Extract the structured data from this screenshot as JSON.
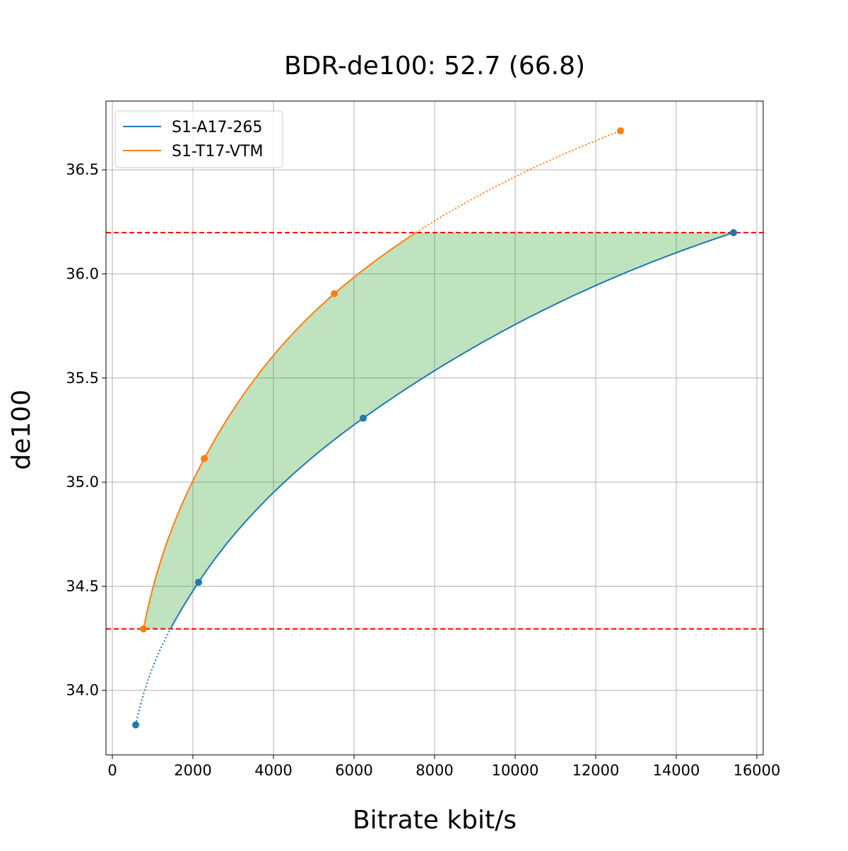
{
  "chart_data": {
    "type": "line",
    "title": "BDR-de100: 52.7 (66.8)",
    "xlabel": "Bitrate kbit/s",
    "ylabel": "de100",
    "xlim": [
      -158,
      16158
    ],
    "ylim": [
      33.69,
      36.83
    ],
    "xticks": [
      0,
      2000,
      4000,
      6000,
      8000,
      10000,
      12000,
      14000,
      16000
    ],
    "yticks": [
      34.0,
      34.5,
      35.0,
      35.5,
      36.0,
      36.5
    ],
    "xtick_labels": [
      "0",
      "2000",
      "4000",
      "6000",
      "8000",
      "10000",
      "12000",
      "14000",
      "16000"
    ],
    "ytick_labels": [
      "34.0",
      "34.5",
      "35.0",
      "35.5",
      "36.0",
      "36.5"
    ],
    "grid": true,
    "legend": {
      "placement": "top-left"
    },
    "series": [
      {
        "name": "S1-A17-265",
        "color": "#1f77b4",
        "x": [
          579,
          2140,
          6228,
          15421
        ],
        "y": [
          33.834,
          34.519,
          35.307,
          36.198
        ]
      },
      {
        "name": "S1-T17-VTM",
        "color": "#ff7f0e",
        "x": [
          772,
          2281,
          5509,
          12614
        ],
        "y": [
          34.295,
          35.113,
          35.905,
          36.687
        ]
      }
    ],
    "reference_lines": {
      "y": [
        34.295,
        36.198
      ],
      "color": "#ff0000",
      "style": "dashed"
    },
    "fill": {
      "between": "curves within overlap range",
      "color": "#2ca02c",
      "alpha": 0.3
    }
  }
}
